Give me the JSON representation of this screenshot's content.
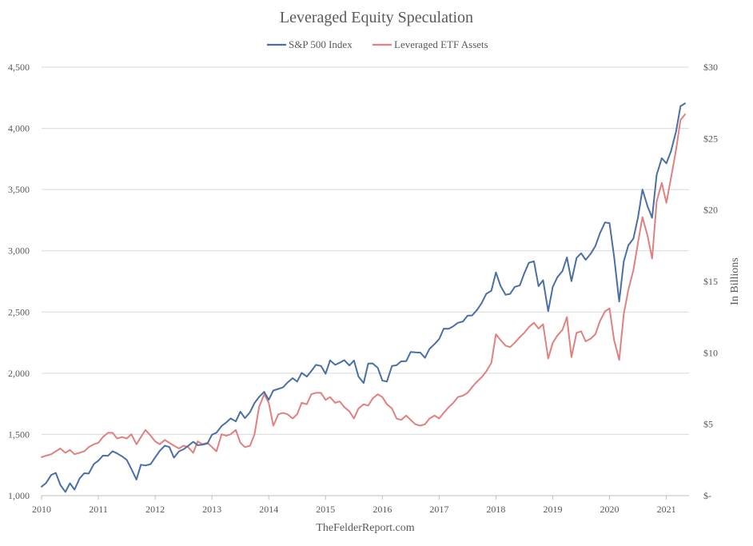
{
  "chart_data": {
    "type": "line",
    "title": "Leveraged Equity Speculation",
    "caption": "TheFelderReport.com",
    "ylabel_right": "In Billions",
    "legend_position": "top-center",
    "grid": "horizontal",
    "x_ticks": [
      "2010",
      "2011",
      "2012",
      "2013",
      "2014",
      "2015",
      "2016",
      "2017",
      "2018",
      "2019",
      "2020",
      "2021"
    ],
    "y_left_ticks": [
      "1,000",
      "1,500",
      "2,000",
      "2,500",
      "3,000",
      "3,500",
      "4,000",
      "4,500"
    ],
    "y_right_ticks": [
      "$-",
      "$5",
      "$10",
      "$15",
      "$20",
      "$25",
      "$30"
    ],
    "y_left_lim": [
      1000,
      4500
    ],
    "y_right_lim": [
      0,
      30
    ],
    "x_lim": [
      2010.0,
      2021.4
    ],
    "series": [
      {
        "name": "S&P 500 Index",
        "axis": "left",
        "color": "#4a6fa5",
        "points": [
          [
            2010.0,
            1073
          ],
          [
            2010.08,
            1104
          ],
          [
            2010.17,
            1169
          ],
          [
            2010.25,
            1186
          ],
          [
            2010.33,
            1089
          ],
          [
            2010.42,
            1030
          ],
          [
            2010.5,
            1101
          ],
          [
            2010.58,
            1049
          ],
          [
            2010.67,
            1141
          ],
          [
            2010.75,
            1183
          ],
          [
            2010.83,
            1180
          ],
          [
            2010.92,
            1257
          ],
          [
            2011.0,
            1286
          ],
          [
            2011.08,
            1327
          ],
          [
            2011.17,
            1325
          ],
          [
            2011.25,
            1363
          ],
          [
            2011.33,
            1345
          ],
          [
            2011.42,
            1320
          ],
          [
            2011.5,
            1292
          ],
          [
            2011.58,
            1218
          ],
          [
            2011.67,
            1131
          ],
          [
            2011.75,
            1253
          ],
          [
            2011.83,
            1246
          ],
          [
            2011.92,
            1257
          ],
          [
            2012.0,
            1312
          ],
          [
            2012.08,
            1365
          ],
          [
            2012.17,
            1408
          ],
          [
            2012.25,
            1397
          ],
          [
            2012.33,
            1310
          ],
          [
            2012.42,
            1362
          ],
          [
            2012.5,
            1379
          ],
          [
            2012.58,
            1406
          ],
          [
            2012.67,
            1440
          ],
          [
            2012.75,
            1412
          ],
          [
            2012.83,
            1416
          ],
          [
            2012.92,
            1426
          ],
          [
            2013.0,
            1498
          ],
          [
            2013.08,
            1514
          ],
          [
            2013.17,
            1569
          ],
          [
            2013.25,
            1597
          ],
          [
            2013.33,
            1631
          ],
          [
            2013.42,
            1606
          ],
          [
            2013.5,
            1686
          ],
          [
            2013.58,
            1633
          ],
          [
            2013.67,
            1682
          ],
          [
            2013.75,
            1757
          ],
          [
            2013.83,
            1806
          ],
          [
            2013.92,
            1848
          ],
          [
            2014.0,
            1783
          ],
          [
            2014.08,
            1859
          ],
          [
            2014.17,
            1872
          ],
          [
            2014.25,
            1884
          ],
          [
            2014.33,
            1924
          ],
          [
            2014.42,
            1960
          ],
          [
            2014.5,
            1931
          ],
          [
            2014.58,
            2003
          ],
          [
            2014.67,
            1972
          ],
          [
            2014.75,
            2018
          ],
          [
            2014.83,
            2068
          ],
          [
            2014.92,
            2059
          ],
          [
            2015.0,
            1995
          ],
          [
            2015.08,
            2105
          ],
          [
            2015.17,
            2068
          ],
          [
            2015.25,
            2086
          ],
          [
            2015.33,
            2107
          ],
          [
            2015.42,
            2063
          ],
          [
            2015.5,
            2104
          ],
          [
            2015.58,
            1972
          ],
          [
            2015.67,
            1920
          ],
          [
            2015.75,
            2079
          ],
          [
            2015.83,
            2080
          ],
          [
            2015.92,
            2044
          ],
          [
            2016.0,
            1940
          ],
          [
            2016.08,
            1932
          ],
          [
            2016.17,
            2060
          ],
          [
            2016.25,
            2065
          ],
          [
            2016.33,
            2097
          ],
          [
            2016.42,
            2099
          ],
          [
            2016.5,
            2174
          ],
          [
            2016.58,
            2171
          ],
          [
            2016.67,
            2168
          ],
          [
            2016.75,
            2126
          ],
          [
            2016.83,
            2199
          ],
          [
            2016.92,
            2239
          ],
          [
            2017.0,
            2279
          ],
          [
            2017.08,
            2364
          ],
          [
            2017.17,
            2363
          ],
          [
            2017.25,
            2384
          ],
          [
            2017.33,
            2412
          ],
          [
            2017.42,
            2423
          ],
          [
            2017.5,
            2470
          ],
          [
            2017.58,
            2472
          ],
          [
            2017.67,
            2519
          ],
          [
            2017.75,
            2575
          ],
          [
            2017.83,
            2648
          ],
          [
            2017.92,
            2674
          ],
          [
            2018.0,
            2824
          ],
          [
            2018.08,
            2714
          ],
          [
            2018.17,
            2641
          ],
          [
            2018.25,
            2648
          ],
          [
            2018.33,
            2705
          ],
          [
            2018.42,
            2718
          ],
          [
            2018.5,
            2816
          ],
          [
            2018.58,
            2902
          ],
          [
            2018.67,
            2914
          ],
          [
            2018.75,
            2711
          ],
          [
            2018.83,
            2760
          ],
          [
            2018.92,
            2507
          ],
          [
            2019.0,
            2704
          ],
          [
            2019.08,
            2784
          ],
          [
            2019.17,
            2834
          ],
          [
            2019.25,
            2946
          ],
          [
            2019.33,
            2752
          ],
          [
            2019.42,
            2942
          ],
          [
            2019.5,
            2980
          ],
          [
            2019.58,
            2926
          ],
          [
            2019.67,
            2977
          ],
          [
            2019.75,
            3038
          ],
          [
            2019.83,
            3141
          ],
          [
            2019.92,
            3231
          ],
          [
            2020.0,
            3226
          ],
          [
            2020.08,
            2954
          ],
          [
            2020.17,
            2585
          ],
          [
            2020.25,
            2912
          ],
          [
            2020.33,
            3044
          ],
          [
            2020.42,
            3100
          ],
          [
            2020.5,
            3271
          ],
          [
            2020.58,
            3500
          ],
          [
            2020.67,
            3363
          ],
          [
            2020.75,
            3270
          ],
          [
            2020.83,
            3622
          ],
          [
            2020.92,
            3756
          ],
          [
            2021.0,
            3714
          ],
          [
            2021.08,
            3811
          ],
          [
            2021.17,
            3973
          ],
          [
            2021.25,
            4181
          ],
          [
            2021.33,
            4204
          ]
        ]
      },
      {
        "name": "Leveraged ETF Assets",
        "axis": "right",
        "color": "#e08080",
        "points": [
          [
            2010.0,
            2.7
          ],
          [
            2010.08,
            2.8
          ],
          [
            2010.17,
            2.9
          ],
          [
            2010.25,
            3.1
          ],
          [
            2010.33,
            3.3
          ],
          [
            2010.42,
            3.0
          ],
          [
            2010.5,
            3.2
          ],
          [
            2010.58,
            2.9
          ],
          [
            2010.67,
            3.0
          ],
          [
            2010.75,
            3.1
          ],
          [
            2010.83,
            3.4
          ],
          [
            2010.92,
            3.6
          ],
          [
            2011.0,
            3.7
          ],
          [
            2011.08,
            4.1
          ],
          [
            2011.17,
            4.4
          ],
          [
            2011.25,
            4.4
          ],
          [
            2011.33,
            4.0
          ],
          [
            2011.42,
            4.1
          ],
          [
            2011.5,
            4.0
          ],
          [
            2011.58,
            4.3
          ],
          [
            2011.67,
            3.6
          ],
          [
            2011.75,
            4.1
          ],
          [
            2011.83,
            4.6
          ],
          [
            2011.92,
            4.2
          ],
          [
            2012.0,
            3.8
          ],
          [
            2012.08,
            3.6
          ],
          [
            2012.17,
            3.9
          ],
          [
            2012.25,
            3.7
          ],
          [
            2012.33,
            3.5
          ],
          [
            2012.42,
            3.3
          ],
          [
            2012.5,
            3.5
          ],
          [
            2012.58,
            3.4
          ],
          [
            2012.67,
            3.0
          ],
          [
            2012.75,
            3.8
          ],
          [
            2012.83,
            3.6
          ],
          [
            2012.92,
            3.7
          ],
          [
            2013.0,
            3.4
          ],
          [
            2013.08,
            3.1
          ],
          [
            2013.17,
            4.3
          ],
          [
            2013.25,
            4.2
          ],
          [
            2013.33,
            4.3
          ],
          [
            2013.42,
            4.6
          ],
          [
            2013.5,
            3.7
          ],
          [
            2013.58,
            3.4
          ],
          [
            2013.67,
            3.5
          ],
          [
            2013.75,
            4.3
          ],
          [
            2013.83,
            6.2
          ],
          [
            2013.92,
            7.1
          ],
          [
            2014.0,
            6.5
          ],
          [
            2014.08,
            4.9
          ],
          [
            2014.17,
            5.7
          ],
          [
            2014.25,
            5.8
          ],
          [
            2014.33,
            5.7
          ],
          [
            2014.42,
            5.4
          ],
          [
            2014.5,
            5.7
          ],
          [
            2014.58,
            6.5
          ],
          [
            2014.67,
            6.4
          ],
          [
            2014.75,
            7.1
          ],
          [
            2014.83,
            7.2
          ],
          [
            2014.92,
            7.2
          ],
          [
            2015.0,
            6.7
          ],
          [
            2015.08,
            6.9
          ],
          [
            2015.17,
            6.5
          ],
          [
            2015.25,
            6.6
          ],
          [
            2015.33,
            6.2
          ],
          [
            2015.42,
            5.9
          ],
          [
            2015.5,
            5.4
          ],
          [
            2015.58,
            6.1
          ],
          [
            2015.67,
            6.4
          ],
          [
            2015.75,
            6.3
          ],
          [
            2015.83,
            6.8
          ],
          [
            2015.92,
            7.1
          ],
          [
            2016.0,
            6.9
          ],
          [
            2016.08,
            6.4
          ],
          [
            2016.17,
            6.1
          ],
          [
            2016.25,
            5.4
          ],
          [
            2016.33,
            5.3
          ],
          [
            2016.42,
            5.6
          ],
          [
            2016.5,
            5.3
          ],
          [
            2016.58,
            5.0
          ],
          [
            2016.67,
            4.9
          ],
          [
            2016.75,
            5.0
          ],
          [
            2016.83,
            5.4
          ],
          [
            2016.92,
            5.6
          ],
          [
            2017.0,
            5.4
          ],
          [
            2017.08,
            5.8
          ],
          [
            2017.17,
            6.2
          ],
          [
            2017.25,
            6.5
          ],
          [
            2017.33,
            6.9
          ],
          [
            2017.42,
            7.0
          ],
          [
            2017.5,
            7.2
          ],
          [
            2017.58,
            7.6
          ],
          [
            2017.67,
            8.0
          ],
          [
            2017.75,
            8.3
          ],
          [
            2017.83,
            8.7
          ],
          [
            2017.92,
            9.3
          ],
          [
            2018.0,
            11.3
          ],
          [
            2018.08,
            10.9
          ],
          [
            2018.17,
            10.5
          ],
          [
            2018.25,
            10.4
          ],
          [
            2018.33,
            10.7
          ],
          [
            2018.42,
            11.1
          ],
          [
            2018.5,
            11.4
          ],
          [
            2018.58,
            11.8
          ],
          [
            2018.67,
            12.1
          ],
          [
            2018.75,
            11.7
          ],
          [
            2018.83,
            12.0
          ],
          [
            2018.92,
            9.6
          ],
          [
            2019.0,
            10.7
          ],
          [
            2019.08,
            11.2
          ],
          [
            2019.17,
            11.6
          ],
          [
            2019.25,
            12.5
          ],
          [
            2019.33,
            9.7
          ],
          [
            2019.42,
            11.4
          ],
          [
            2019.5,
            11.5
          ],
          [
            2019.58,
            10.8
          ],
          [
            2019.67,
            11.0
          ],
          [
            2019.75,
            11.3
          ],
          [
            2019.83,
            12.2
          ],
          [
            2019.92,
            12.9
          ],
          [
            2020.0,
            13.1
          ],
          [
            2020.08,
            10.9
          ],
          [
            2020.17,
            9.5
          ],
          [
            2020.25,
            12.7
          ],
          [
            2020.33,
            14.4
          ],
          [
            2020.42,
            15.8
          ],
          [
            2020.5,
            17.7
          ],
          [
            2020.58,
            19.5
          ],
          [
            2020.67,
            18.2
          ],
          [
            2020.75,
            16.6
          ],
          [
            2020.83,
            20.6
          ],
          [
            2020.92,
            21.9
          ],
          [
            2021.0,
            20.5
          ],
          [
            2021.08,
            22.2
          ],
          [
            2021.17,
            24.2
          ],
          [
            2021.25,
            26.3
          ],
          [
            2021.33,
            26.7
          ]
        ]
      }
    ]
  }
}
